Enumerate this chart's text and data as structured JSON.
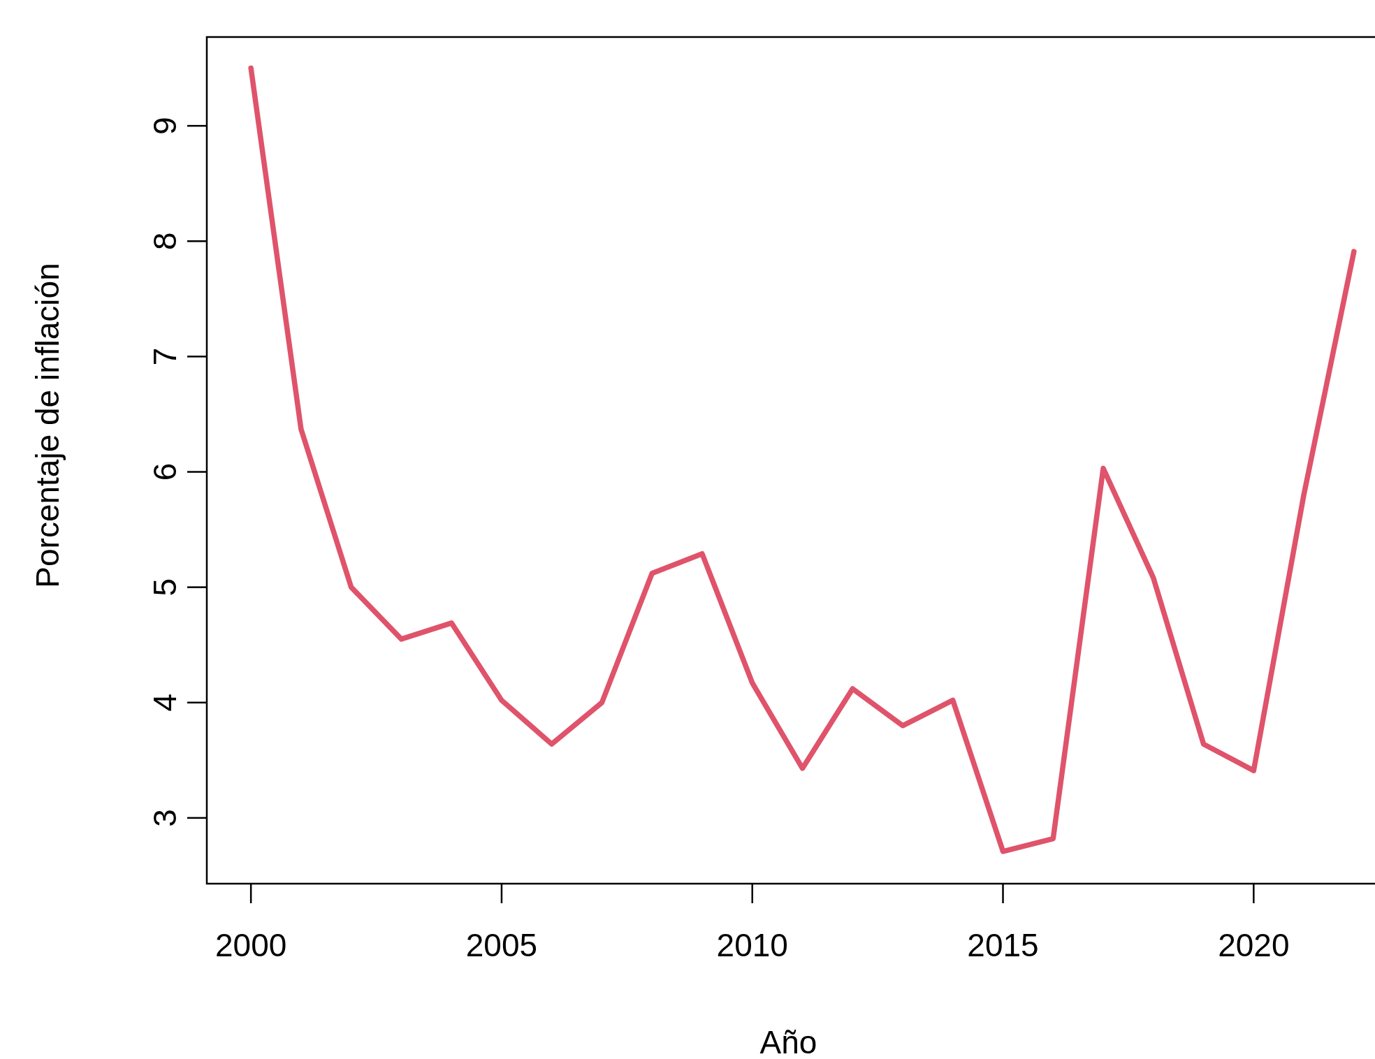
{
  "chart_data": {
    "type": "line",
    "xlabel": "Año",
    "ylabel": "Porcentaje de inflación",
    "x": [
      2000,
      2001,
      2002,
      2003,
      2004,
      2005,
      2006,
      2007,
      2008,
      2009,
      2010,
      2011,
      2012,
      2013,
      2014,
      2015,
      2016,
      2017,
      2018,
      2019,
      2020,
      2021,
      2022
    ],
    "series": [
      {
        "color": "#df536b",
        "values": [
          9.5,
          6.37,
          5.0,
          4.55,
          4.69,
          4.02,
          3.64,
          4.0,
          5.12,
          5.29,
          4.17,
          3.43,
          4.12,
          3.8,
          4.02,
          2.71,
          2.82,
          6.03,
          5.08,
          3.64,
          3.41,
          5.8,
          7.91
        ]
      }
    ],
    "xlim": [
      1999.12,
      2022.88
    ],
    "ylim": [
      2.43,
      9.77
    ],
    "xticks": [
      2000,
      2005,
      2010,
      2015,
      2020
    ],
    "yticks": [
      3,
      4,
      5,
      6,
      7,
      8,
      9
    ],
    "grid": false,
    "line_style": "solid"
  }
}
